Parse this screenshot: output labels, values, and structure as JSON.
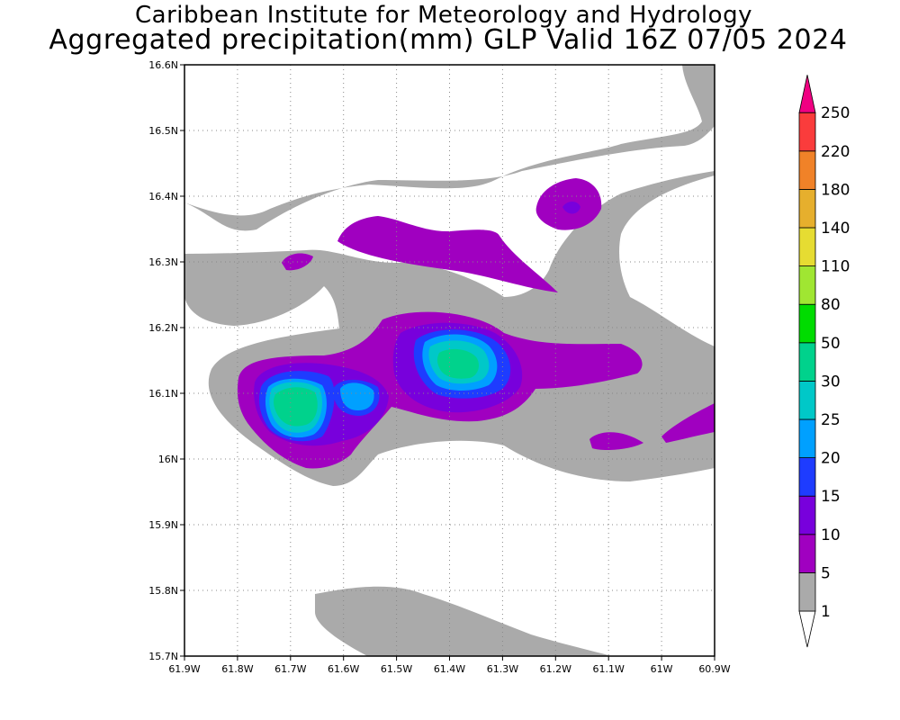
{
  "header": {
    "institute": "Caribbean Institute for Meteorology and Hydrology",
    "product": "Aggregated precipitation(mm) GLP Valid 16Z 07/05 2024"
  },
  "map": {
    "lon_range": [
      -61.9,
      -60.9
    ],
    "lat_range": [
      15.7,
      16.6
    ],
    "x_ticks": [
      {
        "value": -61.9,
        "label": "61.9W"
      },
      {
        "value": -61.8,
        "label": "61.8W"
      },
      {
        "value": -61.7,
        "label": "61.7W"
      },
      {
        "value": -61.6,
        "label": "61.6W"
      },
      {
        "value": -61.5,
        "label": "61.5W"
      },
      {
        "value": -61.4,
        "label": "61.4W"
      },
      {
        "value": -61.3,
        "label": "61.3W"
      },
      {
        "value": -61.2,
        "label": "61.2W"
      },
      {
        "value": -61.1,
        "label": "61.1W"
      },
      {
        "value": -61.0,
        "label": "61W"
      },
      {
        "value": -60.9,
        "label": "60.9W"
      }
    ],
    "y_ticks": [
      {
        "value": 16.6,
        "label": "16.6N"
      },
      {
        "value": 16.5,
        "label": "16.5N"
      },
      {
        "value": 16.4,
        "label": "16.4N"
      },
      {
        "value": 16.3,
        "label": "16.3N"
      },
      {
        "value": 16.2,
        "label": "16.2N"
      },
      {
        "value": 16.1,
        "label": "16.1N"
      },
      {
        "value": 16.0,
        "label": "16N"
      },
      {
        "value": 15.9,
        "label": "15.9N"
      },
      {
        "value": 15.8,
        "label": "15.8N"
      },
      {
        "value": 15.7,
        "label": "15.7N"
      }
    ],
    "grid": "dotted"
  },
  "colorbar": {
    "levels": [
      {
        "label": "1",
        "color": "#aaaaaa"
      },
      {
        "label": "5",
        "color": "#a000c0"
      },
      {
        "label": "10",
        "color": "#7800dc"
      },
      {
        "label": "15",
        "color": "#1e3cff"
      },
      {
        "label": "20",
        "color": "#00a0ff"
      },
      {
        "label": "25",
        "color": "#00c8c8"
      },
      {
        "label": "30",
        "color": "#00d28c"
      },
      {
        "label": "50",
        "color": "#00dc00"
      },
      {
        "label": "80",
        "color": "#a0e632"
      },
      {
        "label": "110",
        "color": "#e6dc32"
      },
      {
        "label": "140",
        "color": "#e6af2d"
      },
      {
        "label": "180",
        "color": "#f08228"
      },
      {
        "label": "220",
        "color": "#fa3c3c"
      },
      {
        "label": "250",
        "color": "#f00082"
      }
    ],
    "under_color": "#ffffff",
    "over_color": "#f00082"
  }
}
